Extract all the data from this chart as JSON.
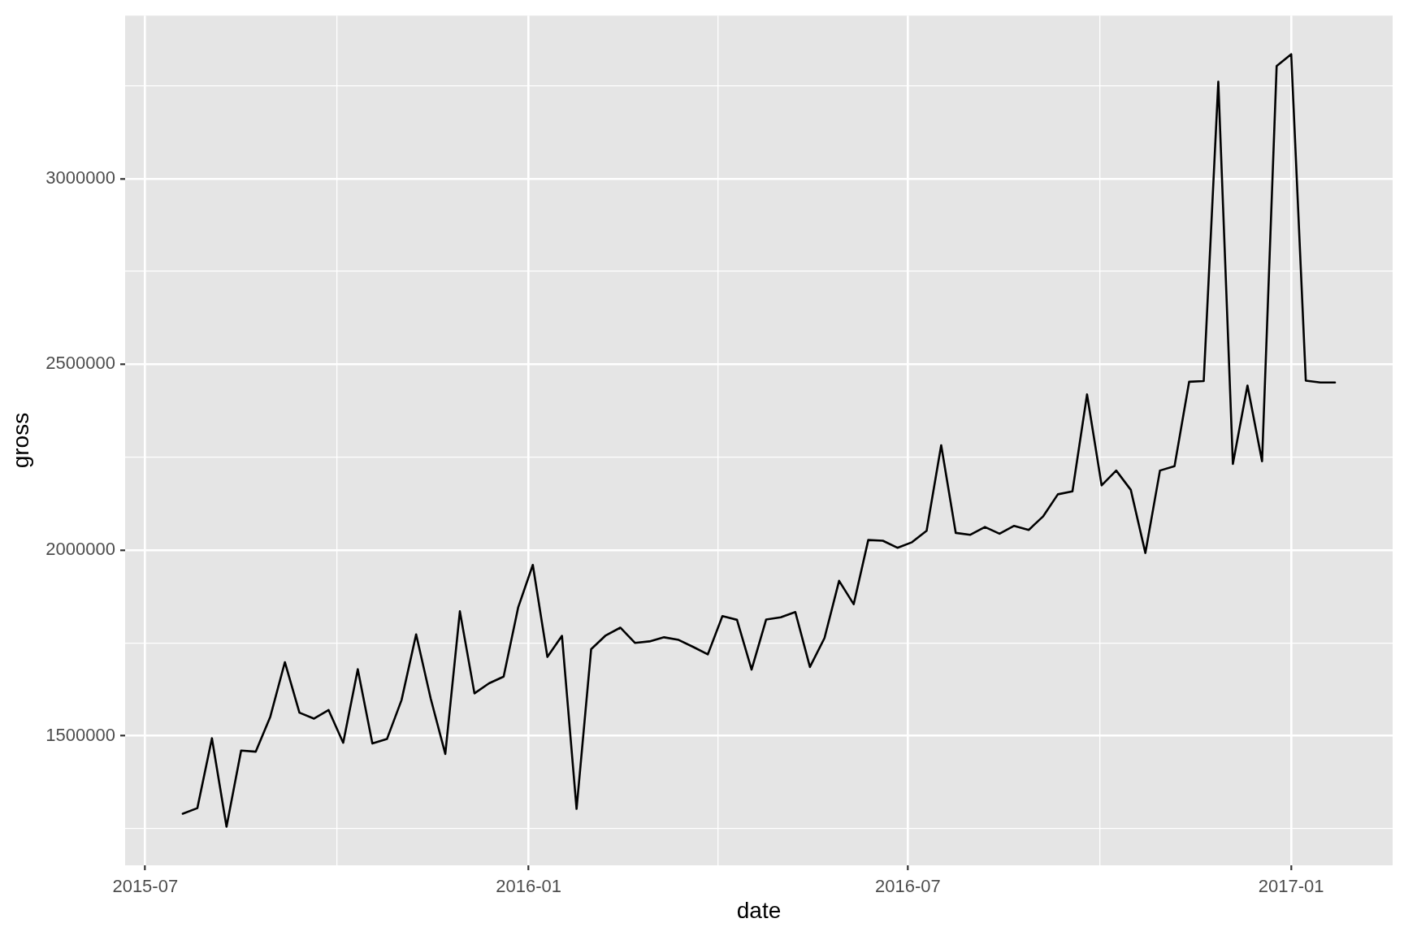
{
  "chart_data": {
    "type": "line",
    "xlabel": "date",
    "ylabel": "gross",
    "color": "#000000",
    "grid": true,
    "x": [
      "2015-07-19",
      "2015-07-26",
      "2015-08-02",
      "2015-08-09",
      "2015-08-16",
      "2015-08-23",
      "2015-08-30",
      "2015-09-06",
      "2015-09-13",
      "2015-09-20",
      "2015-09-27",
      "2015-10-04",
      "2015-10-11",
      "2015-10-18",
      "2015-10-25",
      "2015-11-01",
      "2015-11-08",
      "2015-11-15",
      "2015-11-22",
      "2015-11-29",
      "2015-12-06",
      "2015-12-13",
      "2015-12-20",
      "2015-12-27",
      "2016-01-03",
      "2016-01-10",
      "2016-01-17",
      "2016-01-24",
      "2016-01-31",
      "2016-02-07",
      "2016-02-14",
      "2016-02-21",
      "2016-02-28",
      "2016-03-06",
      "2016-03-13",
      "2016-03-20",
      "2016-03-27",
      "2016-04-03",
      "2016-04-10",
      "2016-04-17",
      "2016-04-24",
      "2016-05-01",
      "2016-05-08",
      "2016-05-15",
      "2016-05-22",
      "2016-05-29",
      "2016-06-05",
      "2016-06-12",
      "2016-06-19",
      "2016-06-26",
      "2016-07-03",
      "2016-07-10",
      "2016-07-17",
      "2016-07-24",
      "2016-07-31",
      "2016-08-07",
      "2016-08-14",
      "2016-08-21",
      "2016-08-28",
      "2016-09-04",
      "2016-09-11",
      "2016-09-18",
      "2016-09-25",
      "2016-10-02",
      "2016-10-09",
      "2016-10-16",
      "2016-10-23",
      "2016-10-30",
      "2016-11-06",
      "2016-11-13",
      "2016-11-20",
      "2016-11-27",
      "2016-12-04",
      "2016-12-11",
      "2016-12-18",
      "2016-12-25",
      "2017-01-01",
      "2017-01-08",
      "2017-01-15",
      "2017-01-22"
    ],
    "values": [
      1290000,
      1305000,
      1493000,
      1255000,
      1460000,
      1457000,
      1551000,
      1698000,
      1562000,
      1546000,
      1569000,
      1481000,
      1679000,
      1479000,
      1491000,
      1596000,
      1773000,
      1600000,
      1451000,
      1835000,
      1614000,
      1641000,
      1659000,
      1846000,
      1960000,
      1712000,
      1769000,
      1303000,
      1733000,
      1770000,
      1791000,
      1750000,
      1754000,
      1765000,
      1758000,
      1739000,
      1719000,
      1822000,
      1812000,
      1678000,
      1813000,
      1819000,
      1833000,
      1685000,
      1763000,
      1917000,
      1854000,
      2027000,
      2025000,
      2006000,
      2021000,
      2052000,
      2282000,
      2046000,
      2041000,
      2062000,
      2044000,
      2065000,
      2054000,
      2091000,
      2150000,
      2158000,
      2419000,
      2174000,
      2214000,
      2162000,
      1992000,
      2214000,
      2226000,
      2453000,
      2455000,
      3261000,
      2232000,
      2443000,
      2239000,
      3303000,
      3335000,
      2456000,
      2451000,
      2451000
    ],
    "xlim": [
      "2015-06-21T08:00",
      "2017-02-18T16:00"
    ],
    "xticks": [
      "2015-07",
      {
        "value": "2015-10",
        "label": null
      },
      "2016-01",
      {
        "value": "2016-04",
        "label": null
      },
      "2016-07",
      {
        "value": "2016-10",
        "label": null
      },
      "2017-01"
    ],
    "ylim": [
      1151000,
      3439000
    ],
    "yticks": [
      {
        "value": 1250000,
        "label": null
      },
      1500000,
      {
        "value": 1750000,
        "label": null
      },
      2000000,
      {
        "value": 2250000,
        "label": null
      },
      2500000,
      {
        "value": 2750000,
        "label": null
      },
      3000000,
      {
        "value": 3250000,
        "label": null
      }
    ]
  }
}
